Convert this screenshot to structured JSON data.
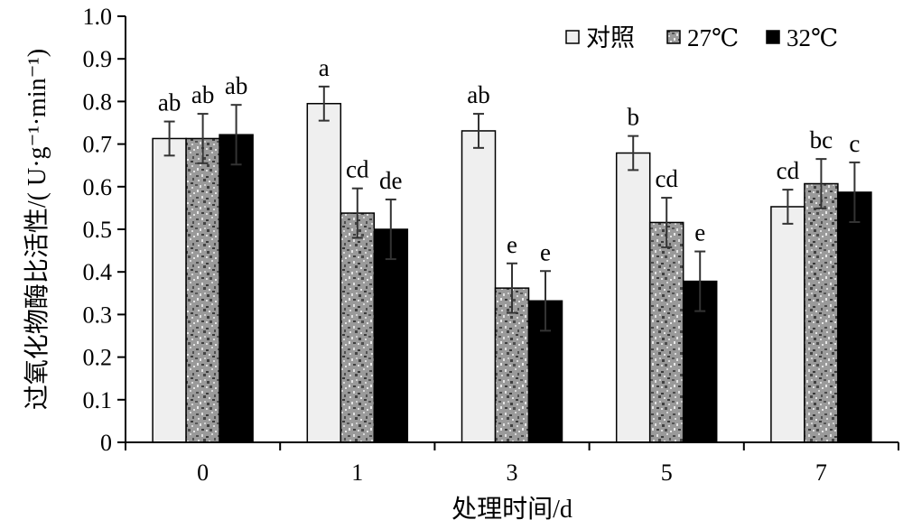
{
  "chart_data": {
    "type": "bar",
    "xlabel": "处理时间/d",
    "ylabel": "过氧化物酶比活性/( U·g⁻¹·min⁻¹)",
    "ylim": [
      0,
      1.0
    ],
    "yticks": [
      "0",
      "0.1",
      "0.2",
      "0.3",
      "0.4",
      "0.5",
      "0.6",
      "0.7",
      "0.8",
      "0.9",
      "1.0"
    ],
    "categories": [
      "0",
      "1",
      "3",
      "5",
      "7"
    ],
    "legend_position": "top-right",
    "series": [
      {
        "name": "对照",
        "color": "#efefef",
        "fill": "light",
        "values": [
          0.713,
          0.795,
          0.731,
          0.679,
          0.553
        ],
        "errors": [
          0.04,
          0.04,
          0.04,
          0.04,
          0.04
        ],
        "labels": [
          "ab",
          "a",
          "ab",
          "b",
          "cd"
        ]
      },
      {
        "name": "27℃",
        "color": "#8c8c8c",
        "fill": "speckled",
        "values": [
          0.713,
          0.538,
          0.362,
          0.516,
          0.607
        ],
        "errors": [
          0.058,
          0.058,
          0.058,
          0.058,
          0.058
        ],
        "labels": [
          "ab",
          "cd",
          "e",
          "cd",
          "bc"
        ]
      },
      {
        "name": "32℃",
        "color": "#000000",
        "fill": "solid",
        "values": [
          0.722,
          0.5,
          0.332,
          0.378,
          0.587
        ],
        "errors": [
          0.07,
          0.07,
          0.07,
          0.07,
          0.07
        ],
        "labels": [
          "ab",
          "de",
          "e",
          "e",
          "c"
        ]
      }
    ]
  }
}
